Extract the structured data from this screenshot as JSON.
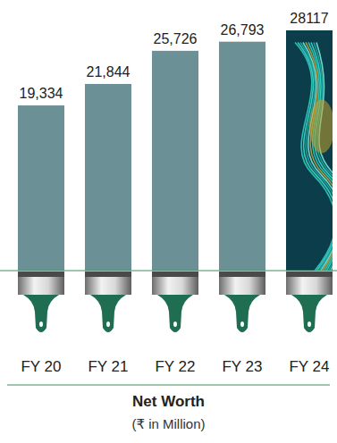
{
  "chart_data": {
    "type": "bar",
    "title": "Net Worth",
    "subtitle": "(₹ in Million)",
    "categories": [
      "FY 20",
      "FY 21",
      "FY 22",
      "FY 23",
      "FY 24"
    ],
    "values": [
      19334,
      21844,
      25726,
      26793,
      28117
    ],
    "value_labels": [
      "19,334",
      "21,844",
      "25,726",
      "26,793",
      "28117"
    ],
    "colors": [
      "#6b9096",
      "#6b9096",
      "#6b9096",
      "#6b9096",
      "#0b3d4a"
    ],
    "ylim": [
      0,
      30000
    ],
    "data_labels": true,
    "tick_labels": "x"
  }
}
